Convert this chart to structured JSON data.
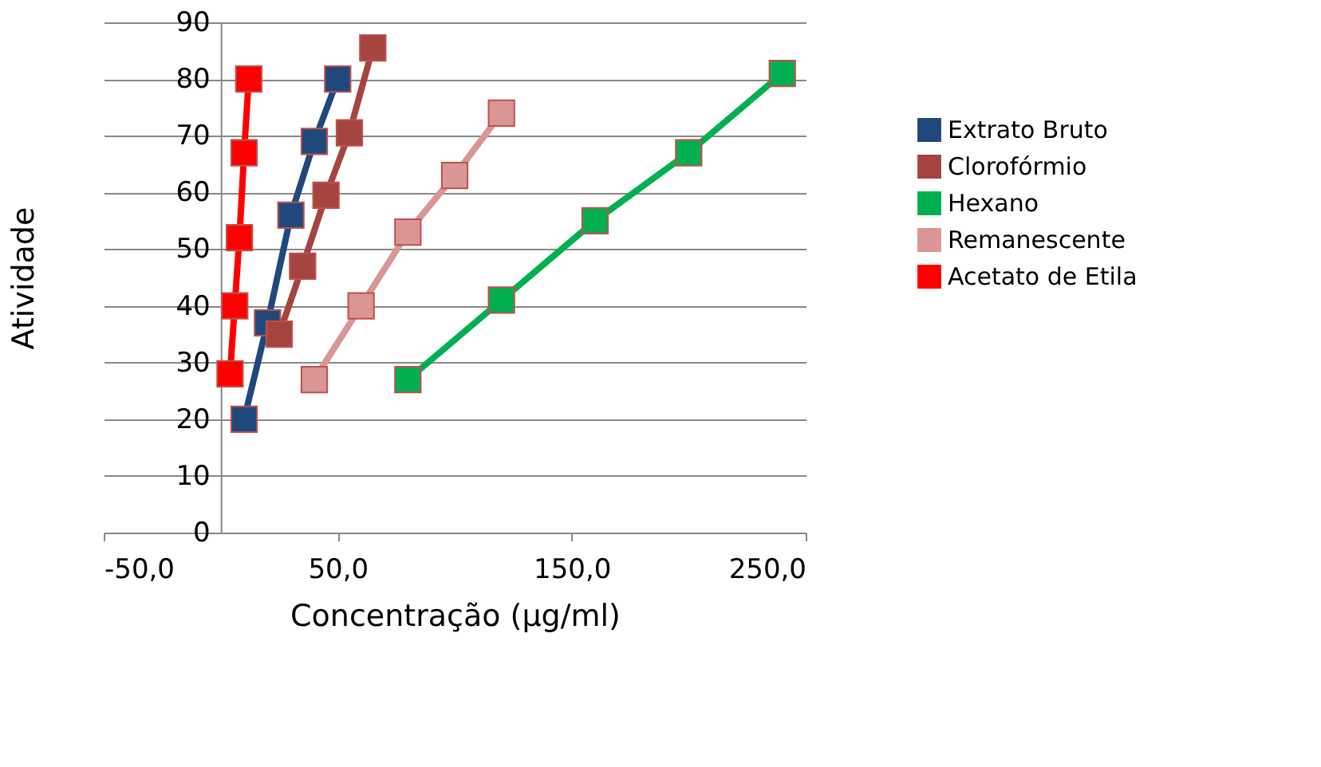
{
  "chart_data": {
    "type": "line",
    "xlabel": "Concentração (µg/ml)",
    "ylabel": "Atividade",
    "xlim": [
      -50,
      250
    ],
    "xticks": [
      {
        "value": -50,
        "label": "-50,0"
      },
      {
        "value": 50,
        "label": "50,0"
      },
      {
        "value": 150,
        "label": "150,0"
      },
      {
        "value": 250,
        "label": "250,0"
      }
    ],
    "ylim": [
      0,
      90
    ],
    "yticks": [
      0,
      10,
      20,
      30,
      40,
      50,
      60,
      70,
      80,
      90
    ],
    "grid": "y",
    "legend": "right",
    "marker": "square",
    "line_style": "solid",
    "series": [
      {
        "name": "Extrato Bruto",
        "color": "#1f497d",
        "x": [
          10,
          20,
          30,
          40,
          50
        ],
        "values": [
          20,
          37,
          56,
          69,
          80
        ]
      },
      {
        "name": "Clorofórmio",
        "color": "#a5443f",
        "x": [
          25,
          35,
          45,
          55,
          65
        ],
        "values": [
          35,
          47,
          59.5,
          70.5,
          85.5
        ]
      },
      {
        "name": "Hexano",
        "color": "#00b050",
        "x": [
          80,
          120,
          160,
          200,
          240
        ],
        "values": [
          27,
          41,
          55,
          67,
          81
        ]
      },
      {
        "name": "Remanescente",
        "color": "#d99694",
        "x": [
          40,
          60,
          80,
          100,
          120
        ],
        "values": [
          27,
          40,
          53,
          63,
          74
        ]
      },
      {
        "name": "Acetato de Etila",
        "color": "#ff0000",
        "x": [
          4,
          6,
          8,
          10,
          12
        ],
        "values": [
          28,
          40,
          52,
          67,
          80
        ]
      }
    ]
  }
}
